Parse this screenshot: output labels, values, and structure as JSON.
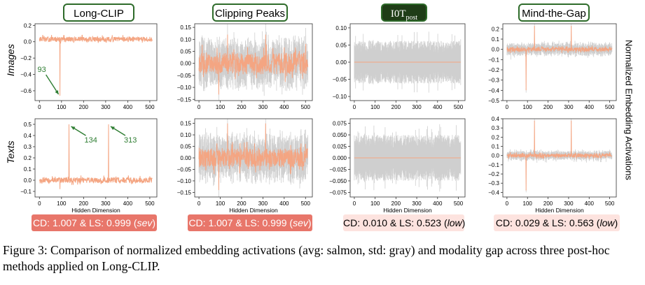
{
  "colors": {
    "avg": "#f4a582",
    "std": "#cfcfcf",
    "annotation": "#2e7d32",
    "title_border": "#2e6b2a",
    "sev_box": "#e8766a",
    "low_box": "#fde3df"
  },
  "methods": [
    {
      "title": "Long-CLIP",
      "score_text": "CD: 1.007 & LS: 0.999 (",
      "severity": "sev",
      "score_close": ")"
    },
    {
      "title": "Clipping Peaks",
      "score_text": "CD: 1.007 & LS: 0.999 (",
      "severity": "sev",
      "score_close": ")"
    },
    {
      "title_main": "I0T",
      "title_sub": "post",
      "score_text": "CD: 0.010 & LS: 0.523 (",
      "severity": "low",
      "score_close": ")"
    },
    {
      "title": "Mind-the-Gap",
      "score_text": "CD: 0.029 & LS: 0.563 (",
      "severity": "low",
      "score_close": ")"
    }
  ],
  "row_labels": {
    "images": "Images",
    "texts": "Texts"
  },
  "right_label": "Normalized Embedding Activations",
  "chart_data": [
    {
      "type": "line",
      "panel": "Long-CLIP / Images",
      "xlabel": "",
      "xlim": [
        -20,
        532
      ],
      "xticks": [
        0,
        100,
        200,
        300,
        400,
        500
      ],
      "ylim": [
        -0.72,
        0.22
      ],
      "yticks": [
        0.2,
        0.0,
        -0.2,
        -0.4,
        -0.6
      ],
      "ytick_labels": [
        "0.2",
        "0.0",
        "−0.2",
        "−0.4",
        "−0.6"
      ],
      "series": [
        {
          "name": "avg",
          "baseline": 0.03,
          "noise": 0.03,
          "spikes": [
            [
              93,
              -0.66
            ]
          ]
        },
        {
          "name": "std",
          "amp": 0.0
        }
      ],
      "annotations": [
        {
          "text": "93",
          "x": 93,
          "y": -0.66
        }
      ]
    },
    {
      "type": "line",
      "panel": "Clipping Peaks / Images",
      "xlabel": "",
      "xlim": [
        -20,
        532
      ],
      "xticks": [
        0,
        100,
        200,
        300,
        400,
        500
      ],
      "ylim": [
        -0.155,
        0.165
      ],
      "yticks": [
        0.15,
        0.1,
        0.05,
        0.0,
        -0.05,
        -0.1,
        -0.15
      ],
      "ytick_labels": [
        "0.15",
        "0.10",
        "0.05",
        "0.00",
        "−0.05",
        "−0.10",
        "−0.15"
      ],
      "series": [
        {
          "name": "avg",
          "baseline": 0.0,
          "noise": 0.045,
          "spikes": [
            [
              93,
              -0.13
            ],
            [
              134,
              0.12
            ],
            [
              313,
              0.12
            ]
          ]
        },
        {
          "name": "std",
          "amp": 0.06
        }
      ]
    },
    {
      "type": "line",
      "panel": "I0Tpost / Images",
      "xlabel": "",
      "xlim": [
        -20,
        532
      ],
      "xticks": [
        0,
        100,
        200,
        300,
        400,
        500
      ],
      "ylim": [
        -0.112,
        0.112
      ],
      "yticks": [
        0.1,
        0.05,
        0.0,
        -0.05,
        -0.1
      ],
      "ytick_labels": [
        "0.10",
        "0.05",
        "0.00",
        "−0.05",
        "−0.10"
      ],
      "series": [
        {
          "name": "avg",
          "baseline": 0.0,
          "noise": 0.0,
          "spikes": []
        },
        {
          "name": "std",
          "amp": 0.05
        }
      ]
    },
    {
      "type": "line",
      "panel": "Mind-the-Gap / Images",
      "xlabel": "",
      "xlim": [
        -20,
        532
      ],
      "xticks": [
        0,
        100,
        200,
        300,
        400,
        500
      ],
      "ylim": [
        -0.5,
        0.25
      ],
      "yticks": [
        0.2,
        0.1,
        0.0,
        -0.1,
        -0.2,
        -0.3,
        -0.4,
        -0.5
      ],
      "ytick_labels": [
        "0.2",
        "0.1",
        "0.0",
        "−0.1",
        "−0.2",
        "−0.3",
        "−0.4",
        "−0.5"
      ],
      "series": [
        {
          "name": "avg",
          "baseline": 0.0,
          "noise": 0.02,
          "spikes": [
            [
              93,
              -0.4
            ],
            [
              134,
              0.23
            ],
            [
              313,
              0.23
            ]
          ]
        },
        {
          "name": "std",
          "amp": 0.04
        }
      ]
    },
    {
      "type": "line",
      "panel": "Long-CLIP / Texts",
      "xlabel": "Hidden Dimension",
      "xlim": [
        -20,
        532
      ],
      "xticks": [
        0,
        100,
        200,
        300,
        400,
        500
      ],
      "ylim": [
        -0.15,
        0.55
      ],
      "yticks": [
        0.5,
        0.4,
        0.3,
        0.2,
        0.1,
        0.0,
        -0.1
      ],
      "ytick_labels": [
        "0.5",
        "0.4",
        "0.3",
        "0.2",
        "0.1",
        "0.0",
        "−0.1"
      ],
      "series": [
        {
          "name": "avg",
          "baseline": 0.0,
          "noise": 0.025,
          "spikes": [
            [
              134,
              0.5
            ],
            [
              313,
              0.5
            ],
            [
              93,
              -0.08
            ]
          ]
        },
        {
          "name": "std",
          "amp": 0.0
        }
      ],
      "annotations": [
        {
          "text": "134",
          "x": 134,
          "y": 0.5
        },
        {
          "text": "313",
          "x": 313,
          "y": 0.5
        }
      ]
    },
    {
      "type": "line",
      "panel": "Clipping Peaks / Texts",
      "xlabel": "Hidden Dimension",
      "xlim": [
        -20,
        532
      ],
      "xticks": [
        0,
        100,
        200,
        300,
        400,
        500
      ],
      "ylim": [
        -0.17,
        0.17
      ],
      "yticks": [
        0.15,
        0.1,
        0.05,
        0.0,
        -0.05,
        -0.1,
        -0.15
      ],
      "ytick_labels": [
        "0.15",
        "0.10",
        "0.05",
        "0.00",
        "−0.05",
        "−0.10",
        "−0.15"
      ],
      "series": [
        {
          "name": "avg",
          "baseline": 0.0,
          "noise": 0.04,
          "spikes": [
            [
              93,
              -0.14
            ],
            [
              134,
              0.15
            ],
            [
              313,
              0.15
            ]
          ]
        },
        {
          "name": "std",
          "amp": 0.06
        }
      ]
    },
    {
      "type": "line",
      "panel": "I0Tpost / Texts",
      "xlabel": "Hidden Dimension",
      "xlim": [
        -20,
        532
      ],
      "xticks": [
        0,
        100,
        200,
        300,
        400,
        500
      ],
      "ylim": [
        -0.085,
        0.085
      ],
      "yticks": [
        0.075,
        0.05,
        0.025,
        0.0,
        -0.025,
        -0.05,
        -0.075
      ],
      "ytick_labels": [
        "0.075",
        "0.050",
        "0.025",
        "0.000",
        "−0.025",
        "−0.050",
        "−0.075"
      ],
      "series": [
        {
          "name": "avg",
          "baseline": 0.0,
          "noise": 0.0,
          "spikes": []
        },
        {
          "name": "std",
          "amp": 0.04
        }
      ]
    },
    {
      "type": "line",
      "panel": "Mind-the-Gap / Texts",
      "xlabel": "Hidden Dimension",
      "xlim": [
        -20,
        532
      ],
      "xticks": [
        0,
        100,
        200,
        300,
        400,
        500
      ],
      "ylim": [
        -0.45,
        0.4
      ],
      "yticks": [
        0.4,
        0.3,
        0.2,
        0.1,
        0.0,
        -0.1,
        -0.2,
        -0.3,
        -0.4
      ],
      "ytick_labels": [
        "0.4",
        "0.3",
        "0.2",
        "0.1",
        "0.0",
        "−0.1",
        "−0.2",
        "−0.3",
        "−0.4"
      ],
      "series": [
        {
          "name": "avg",
          "baseline": 0.0,
          "noise": 0.02,
          "spikes": [
            [
              93,
              -0.38
            ],
            [
              134,
              0.38
            ],
            [
              313,
              0.38
            ]
          ]
        },
        {
          "name": "std",
          "amp": 0.03
        }
      ]
    }
  ],
  "caption": "Figure 3: Comparison of normalized embedding activations (avg: salmon, std: gray) and modality gap across three post-hoc methods applied on Long-CLIP."
}
